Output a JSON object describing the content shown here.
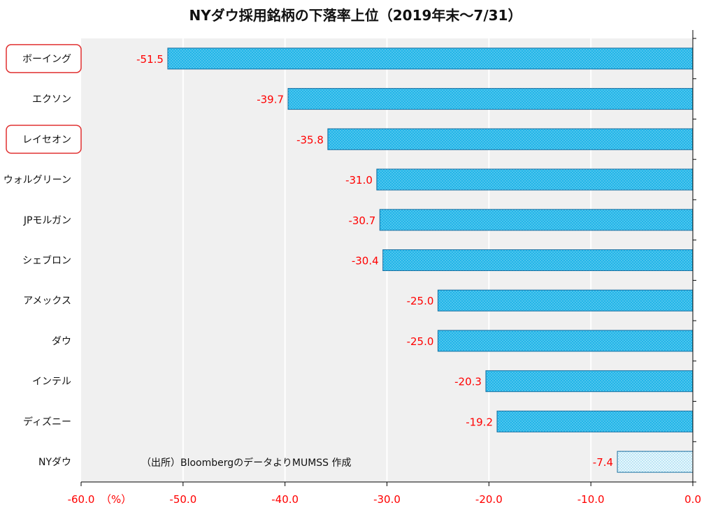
{
  "chart_data": {
    "type": "bar",
    "orientation": "horizontal",
    "title": "NYダウ採用銘柄の下落率上位（2019年末～7/31）",
    "categories": [
      "ボーイング",
      "エクソン",
      "レイセオン",
      "ウォルグリーン",
      "JPモルガン",
      "シェブロン",
      "アメックス",
      "ダウ",
      "インテル",
      "ディズニー",
      "NYダウ"
    ],
    "values": [
      -51.5,
      -39.7,
      -35.8,
      -31.0,
      -30.7,
      -30.4,
      -25.0,
      -25.0,
      -20.3,
      -19.2,
      -7.4
    ],
    "value_labels": [
      "-51.5",
      "-39.7",
      "-35.8",
      "-31.0",
      "-30.7",
      "-30.4",
      "-25.0",
      "-25.0",
      "-20.3",
      "-19.2",
      "-7.4"
    ],
    "highlighted_categories": [
      "ボーイング",
      "レイセオン"
    ],
    "xlim": [
      -60,
      0
    ],
    "xticks": [
      -60,
      -50,
      -40,
      -30,
      -20,
      -10,
      0
    ],
    "xtick_labels": [
      "-60.0",
      "-50.0",
      "-40.0",
      "-30.0",
      "-20.0",
      "-10.0",
      "0.0"
    ],
    "xlabel_unit": "（%）",
    "grid": true,
    "source_note": "（出所）BloombergのデータよりMUMSS 作成",
    "colors": {
      "bar_fill": "#21b5e8",
      "bar_stroke": "#1a6fa0",
      "index_bar_fill": "#d8f1fb",
      "plot_background": "#f0f0f0",
      "gridline": "#ffffff",
      "label_red": "#ff0000",
      "highlight_border": "#e03030"
    }
  }
}
